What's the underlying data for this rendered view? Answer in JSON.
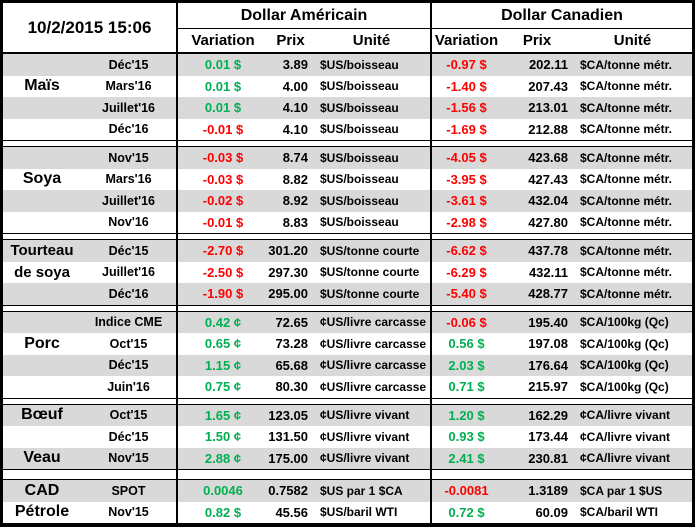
{
  "header": {
    "timestamp": "10/2/2015 15:06",
    "us_title": "Dollar Américain",
    "ca_title": "Dollar Canadien",
    "col_variation": "Variation",
    "col_prix": "Prix",
    "col_unite": "Unité"
  },
  "colors": {
    "positive_green": "#00B050",
    "negative_red": "#FF0000",
    "row_stripe_gray": "#D9D9D9",
    "border_black": "#000000"
  },
  "sections": [
    {
      "label": "Maïs",
      "rows": [
        {
          "month": "Déc'15",
          "us_var": "0.01 $",
          "us_dir": "up",
          "us_prix": "3.89",
          "us_unit": "$US/boisseau",
          "ca_var": "-0.97 $",
          "ca_dir": "down",
          "ca_prix": "202.11",
          "ca_unit": "$CA/tonne métr."
        },
        {
          "month": "Mars'16",
          "us_var": "0.01 $",
          "us_dir": "up",
          "us_prix": "4.00",
          "us_unit": "$US/boisseau",
          "ca_var": "-1.40 $",
          "ca_dir": "down",
          "ca_prix": "207.43",
          "ca_unit": "$CA/tonne métr."
        },
        {
          "month": "Juillet'16",
          "us_var": "0.01 $",
          "us_dir": "up",
          "us_prix": "4.10",
          "us_unit": "$US/boisseau",
          "ca_var": "-1.56 $",
          "ca_dir": "down",
          "ca_prix": "213.01",
          "ca_unit": "$CA/tonne métr."
        },
        {
          "month": "Déc'16",
          "us_var": "-0.01 $",
          "us_dir": "down",
          "us_prix": "4.10",
          "us_unit": "$US/boisseau",
          "ca_var": "-1.69 $",
          "ca_dir": "down",
          "ca_prix": "212.88",
          "ca_unit": "$CA/tonne métr."
        }
      ]
    },
    {
      "label": "Soya",
      "rows": [
        {
          "month": "Nov'15",
          "us_var": "-0.03 $",
          "us_dir": "down",
          "us_prix": "8.74",
          "us_unit": "$US/boisseau",
          "ca_var": "-4.05 $",
          "ca_dir": "down",
          "ca_prix": "423.68",
          "ca_unit": "$CA/tonne métr."
        },
        {
          "month": "Mars'16",
          "us_var": "-0.03 $",
          "us_dir": "down",
          "us_prix": "8.82",
          "us_unit": "$US/boisseau",
          "ca_var": "-3.95 $",
          "ca_dir": "down",
          "ca_prix": "427.43",
          "ca_unit": "$CA/tonne métr."
        },
        {
          "month": "Juillet'16",
          "us_var": "-0.02 $",
          "us_dir": "down",
          "us_prix": "8.92",
          "us_unit": "$US/boisseau",
          "ca_var": "-3.61 $",
          "ca_dir": "down",
          "ca_prix": "432.04",
          "ca_unit": "$CA/tonne métr."
        },
        {
          "month": "Nov'16",
          "us_var": "-0.01 $",
          "us_dir": "down",
          "us_prix": "8.83",
          "us_unit": "$US/boisseau",
          "ca_var": "-2.98 $",
          "ca_dir": "down",
          "ca_prix": "427.80",
          "ca_unit": "$CA/tonne métr."
        }
      ]
    },
    {
      "label_line1": "Tourteau",
      "label_line2": "de soya",
      "rows": [
        {
          "month": "Déc'15",
          "us_var": "-2.70 $",
          "us_dir": "down",
          "us_prix": "301.20",
          "us_unit": "$US/tonne courte",
          "ca_var": "-6.62 $",
          "ca_dir": "down",
          "ca_prix": "437.78",
          "ca_unit": "$CA/tonne métr."
        },
        {
          "month": "Juillet'16",
          "us_var": "-2.50 $",
          "us_dir": "down",
          "us_prix": "297.30",
          "us_unit": "$US/tonne courte",
          "ca_var": "-6.29 $",
          "ca_dir": "down",
          "ca_prix": "432.11",
          "ca_unit": "$CA/tonne métr."
        },
        {
          "month": "Déc'16",
          "us_var": "-1.90 $",
          "us_dir": "down",
          "us_prix": "295.00",
          "us_unit": "$US/tonne courte",
          "ca_var": "-5.40 $",
          "ca_dir": "down",
          "ca_prix": "428.77",
          "ca_unit": "$CA/tonne métr."
        }
      ]
    },
    {
      "label": "Porc",
      "rows": [
        {
          "month": "Indice CME",
          "us_var": "0.42 ¢",
          "us_dir": "up",
          "us_prix": "72.65",
          "us_unit": "¢US/livre carcasse",
          "ca_var": "-0.06 $",
          "ca_dir": "down",
          "ca_prix": "195.40",
          "ca_unit": "$CA/100kg (Qc)"
        },
        {
          "month": "Oct'15",
          "us_var": "0.65 ¢",
          "us_dir": "up",
          "us_prix": "73.28",
          "us_unit": "¢US/livre carcasse",
          "ca_var": "0.56 $",
          "ca_dir": "up",
          "ca_prix": "197.08",
          "ca_unit": "$CA/100kg (Qc)"
        },
        {
          "month": "Déc'15",
          "us_var": "1.15 ¢",
          "us_dir": "up",
          "us_prix": "65.68",
          "us_unit": "¢US/livre carcasse",
          "ca_var": "2.03 $",
          "ca_dir": "up",
          "ca_prix": "176.64",
          "ca_unit": "$CA/100kg (Qc)"
        },
        {
          "month": "Juin'16",
          "us_var": "0.75 ¢",
          "us_dir": "up",
          "us_prix": "80.30",
          "us_unit": "¢US/livre carcasse",
          "ca_var": "0.71 $",
          "ca_dir": "up",
          "ca_prix": "215.97",
          "ca_unit": "$CA/100kg (Qc)"
        }
      ]
    },
    {
      "label_boeuf": "Bœuf",
      "label_veau": "Veau",
      "rows": [
        {
          "month": "Oct'15",
          "us_var": "1.65 ¢",
          "us_dir": "up",
          "us_prix": "123.05",
          "us_unit": "¢US/livre vivant",
          "ca_var": "1.20 $",
          "ca_dir": "up",
          "ca_prix": "162.29",
          "ca_unit": "¢CA/livre vivant"
        },
        {
          "month": "Déc'15",
          "us_var": "1.50 ¢",
          "us_dir": "up",
          "us_prix": "131.50",
          "us_unit": "¢US/livre vivant",
          "ca_var": "0.93 $",
          "ca_dir": "up",
          "ca_prix": "173.44",
          "ca_unit": "¢CA/livre vivant"
        },
        {
          "month": "Nov'15",
          "us_var": "2.88 ¢",
          "us_dir": "up",
          "us_prix": "175.00",
          "us_unit": "¢US/livre vivant",
          "ca_var": "2.41 $",
          "ca_dir": "up",
          "ca_prix": "230.81",
          "ca_unit": "¢CA/livre vivant"
        }
      ]
    },
    {
      "label_cad": "CAD",
      "label_petrole": "Pétrole",
      "rows": [
        {
          "month": "SPOT",
          "us_var": "0.0046",
          "us_dir": "up",
          "us_prix": "0.7582",
          "us_unit": "$US par 1 $CA",
          "ca_var": "-0.0081",
          "ca_dir": "down",
          "ca_prix": "1.3189",
          "ca_unit": "$CA par 1 $US"
        },
        {
          "month": "Nov'15",
          "us_var": "0.82 $",
          "us_dir": "up",
          "us_prix": "45.56",
          "us_unit": "$US/baril WTI",
          "ca_var": "0.72 $",
          "ca_dir": "up",
          "ca_prix": "60.09",
          "ca_unit": "$CA/baril WTI"
        }
      ]
    }
  ]
}
